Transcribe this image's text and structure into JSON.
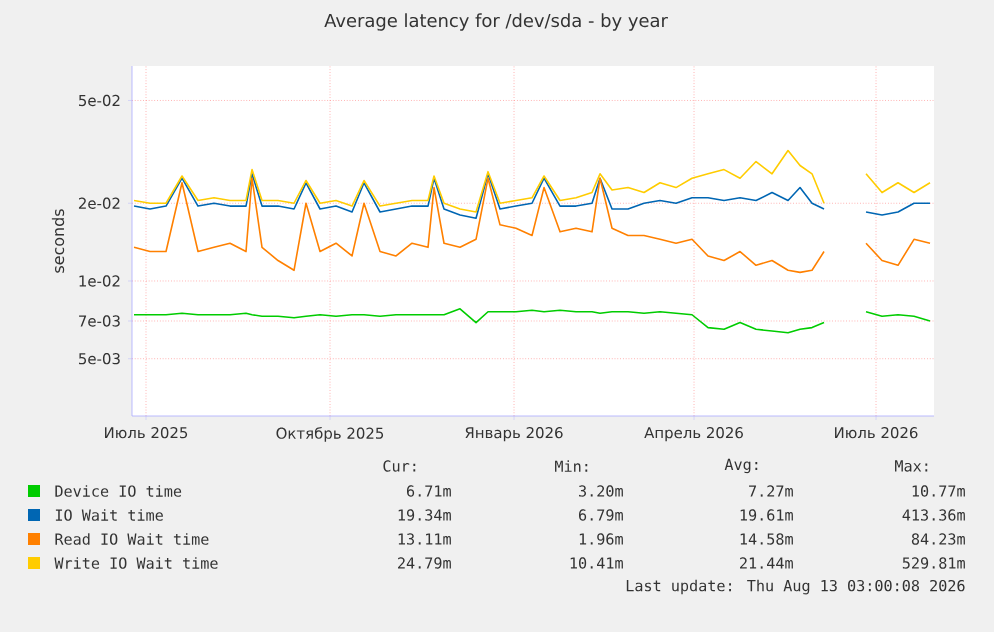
{
  "chart_data": {
    "type": "line",
    "title": "Average latency for /dev/sda - by year",
    "ylabel": "seconds",
    "log": true,
    "grid": true,
    "legend": "bottom",
    "xlim": [
      "2025-06-24",
      "2026-07-30"
    ],
    "xticks": [
      {
        "value": "2025-07-01",
        "label": "Июль 2025"
      },
      {
        "value": "2025-10-01",
        "label": "Октябрь 2025"
      },
      {
        "value": "2026-01-01",
        "label": "Январь 2026"
      },
      {
        "value": "2026-04-01",
        "label": "Апрель 2026"
      },
      {
        "value": "2026-07-01",
        "label": "Июль 2026"
      }
    ],
    "ylim": [
      0.003,
      0.068
    ],
    "yticks": [
      {
        "value": 0.005,
        "label": "5e-03"
      },
      {
        "value": 0.007,
        "label": "7e-03"
      },
      {
        "value": 0.01,
        "label": "1e-02"
      },
      {
        "value": 0.02,
        "label": "2e-02"
      },
      {
        "value": 0.05,
        "label": "5e-02"
      }
    ],
    "x": [
      "2025-06-25",
      "2025-07-03",
      "2025-07-11",
      "2025-07-19",
      "2025-07-27",
      "2025-08-04",
      "2025-08-12",
      "2025-08-20",
      "2025-08-23",
      "2025-08-28",
      "2025-09-05",
      "2025-09-13",
      "2025-09-19",
      "2025-09-26",
      "2025-10-04",
      "2025-10-12",
      "2025-10-18",
      "2025-10-26",
      "2025-11-03",
      "2025-11-11",
      "2025-11-19",
      "2025-11-22",
      "2025-11-27",
      "2025-12-05",
      "2025-12-13",
      "2025-12-19",
      "2025-12-25",
      "2026-01-02",
      "2026-01-10",
      "2026-01-16",
      "2026-01-24",
      "2026-02-01",
      "2026-02-09",
      "2026-02-13",
      "2026-02-19",
      "2026-02-27",
      "2026-03-07",
      "2026-03-15",
      "2026-03-23",
      "2026-03-31",
      "2026-04-08",
      "2026-04-16",
      "2026-04-24",
      "2026-05-02",
      "2026-05-10",
      "2026-05-18",
      "2026-05-24",
      "2026-05-30",
      "2026-06-05",
      "2026-06-19",
      "2026-06-26",
      "2026-07-04",
      "2026-07-12",
      "2026-07-20",
      "2026-07-28"
    ],
    "series": [
      {
        "name": "Device IO time",
        "color": "#00cc00",
        "values": [
          0.0074,
          0.0074,
          0.0074,
          0.0075,
          0.0074,
          0.0074,
          0.0074,
          0.0075,
          0.0074,
          0.0073,
          0.0073,
          0.0072,
          0.0073,
          0.0074,
          0.0073,
          0.0074,
          0.0074,
          0.0073,
          0.0074,
          0.0074,
          0.0074,
          0.0074,
          0.0074,
          0.0078,
          0.0069,
          0.0076,
          0.0076,
          0.0076,
          0.0077,
          0.0076,
          0.0077,
          0.0076,
          0.0076,
          0.0075,
          0.0076,
          0.0076,
          0.0075,
          0.0076,
          0.0075,
          0.0074,
          0.0066,
          0.0065,
          0.0069,
          0.0065,
          0.0064,
          0.0063,
          0.0065,
          0.0066,
          0.0069,
          null,
          0.0076,
          0.0073,
          0.0074,
          0.0073,
          0.007
        ]
      },
      {
        "name": "IO Wait time",
        "color": "#0066b3",
        "values": [
          0.0195,
          0.019,
          0.0195,
          0.025,
          0.0195,
          0.02,
          0.0195,
          0.0195,
          0.026,
          0.0195,
          0.0195,
          0.019,
          0.024,
          0.019,
          0.0195,
          0.0185,
          0.024,
          0.0185,
          0.019,
          0.0195,
          0.0195,
          0.025,
          0.019,
          0.018,
          0.0175,
          0.026,
          0.019,
          0.0195,
          0.02,
          0.025,
          0.0195,
          0.0195,
          0.02,
          0.025,
          0.019,
          0.019,
          0.02,
          0.0205,
          0.02,
          0.021,
          0.021,
          0.0205,
          0.021,
          0.0205,
          0.022,
          0.0205,
          0.023,
          0.02,
          0.019,
          null,
          0.0185,
          0.018,
          0.0185,
          0.02,
          0.02
        ]
      },
      {
        "name": "Read IO Wait time",
        "color": "#ff8000",
        "values": [
          0.0135,
          0.013,
          0.013,
          0.024,
          0.013,
          0.0135,
          0.014,
          0.013,
          0.025,
          0.0135,
          0.012,
          0.011,
          0.02,
          0.013,
          0.014,
          0.0125,
          0.02,
          0.013,
          0.0125,
          0.014,
          0.0135,
          0.023,
          0.014,
          0.0135,
          0.0145,
          0.025,
          0.0165,
          0.016,
          0.015,
          0.023,
          0.0155,
          0.016,
          0.0155,
          0.025,
          0.016,
          0.015,
          0.015,
          0.0145,
          0.014,
          0.0145,
          0.0125,
          0.012,
          0.013,
          0.0115,
          0.012,
          0.011,
          0.0108,
          0.011,
          0.013,
          null,
          0.014,
          0.012,
          0.0115,
          0.0145,
          0.014
        ]
      },
      {
        "name": "Write IO Wait time",
        "color": "#ffcc00",
        "values": [
          0.0205,
          0.02,
          0.02,
          0.0255,
          0.0205,
          0.021,
          0.0205,
          0.0205,
          0.027,
          0.0205,
          0.0205,
          0.02,
          0.0245,
          0.02,
          0.0205,
          0.0195,
          0.0245,
          0.0195,
          0.02,
          0.0205,
          0.0205,
          0.0255,
          0.02,
          0.019,
          0.0185,
          0.0265,
          0.02,
          0.0205,
          0.021,
          0.0255,
          0.0205,
          0.021,
          0.022,
          0.026,
          0.0225,
          0.023,
          0.022,
          0.024,
          0.023,
          0.025,
          0.026,
          0.027,
          0.025,
          0.029,
          0.026,
          0.032,
          0.028,
          0.026,
          0.02,
          null,
          0.026,
          0.022,
          0.024,
          0.022,
          0.024
        ]
      }
    ],
    "annotations": [
      "Cur:",
      "Min:",
      "Avg:",
      "Max:",
      "6.71m",
      "3.20m",
      "7.27m",
      "10.77m",
      "19.34m",
      "6.79m",
      "19.61m",
      "413.36m",
      "13.11m",
      "1.96m",
      "14.58m",
      "84.23m",
      "24.79m",
      "10.41m",
      "21.44m",
      "529.81m",
      "Last update:  Thu Aug 13 03:00:08 2026"
    ]
  }
}
